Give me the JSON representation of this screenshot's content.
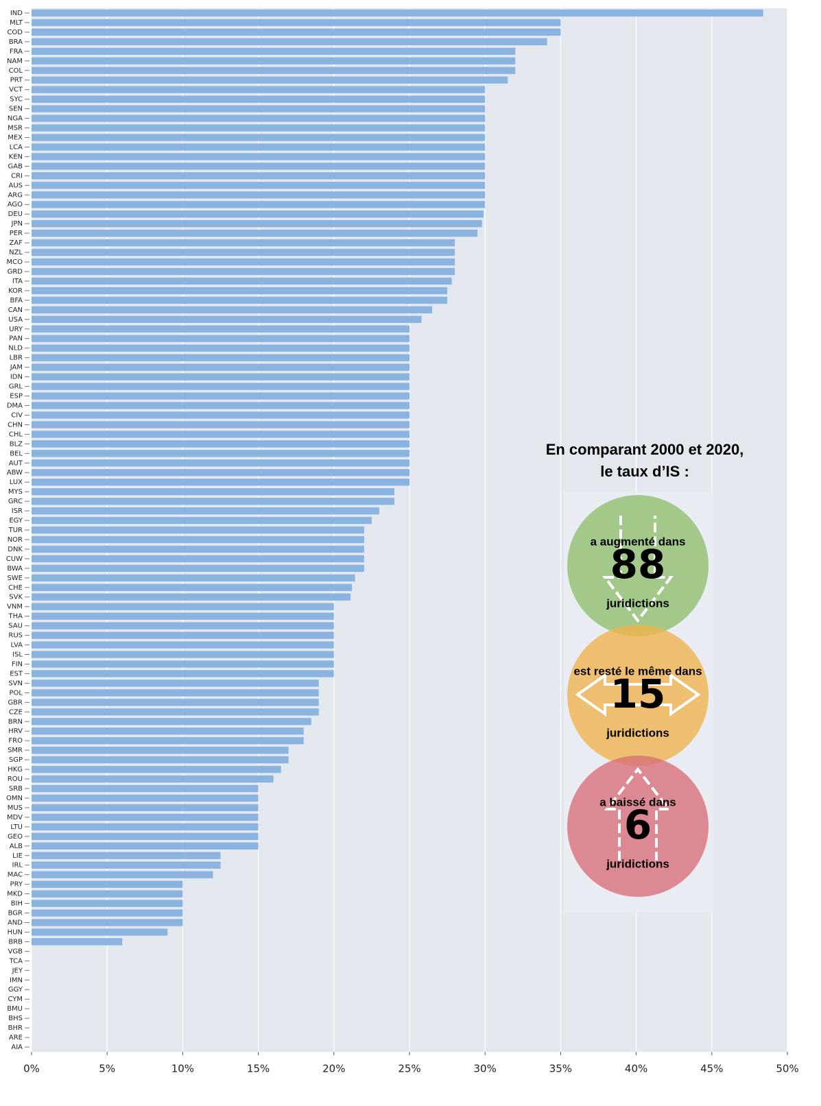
{
  "chart_data": {
    "type": "barh",
    "categories": [
      "IND",
      "MLT",
      "COD",
      "BRA",
      "FRA",
      "NAM",
      "COL",
      "PRT",
      "VCT",
      "SYC",
      "SEN",
      "NGA",
      "MSR",
      "MEX",
      "LCA",
      "KEN",
      "GAB",
      "CRI",
      "AUS",
      "ARG",
      "AGO",
      "DEU",
      "JPN",
      "PER",
      "ZAF",
      "NZL",
      "MCO",
      "GRD",
      "ITA",
      "KOR",
      "BFA",
      "CAN",
      "USA",
      "URY",
      "PAN",
      "NLD",
      "LBR",
      "JAM",
      "IDN",
      "GRL",
      "ESP",
      "DMA",
      "CIV",
      "CHN",
      "CHL",
      "BLZ",
      "BEL",
      "AUT",
      "ABW",
      "LUX",
      "MYS",
      "GRC",
      "ISR",
      "EGY",
      "TUR",
      "NOR",
      "DNK",
      "CUW",
      "BWA",
      "SWE",
      "CHE",
      "SVK",
      "VNM",
      "THA",
      "SAU",
      "RUS",
      "LVA",
      "ISL",
      "FIN",
      "EST",
      "SVN",
      "POL",
      "GBR",
      "CZE",
      "BRN",
      "HRV",
      "FRO",
      "SMR",
      "SGP",
      "HKG",
      "ROU",
      "SRB",
      "OMN",
      "MUS",
      "MDV",
      "LTU",
      "GEO",
      "ALB",
      "LIE",
      "IRL",
      "MAC",
      "PRY",
      "MKD",
      "BIH",
      "BGR",
      "AND",
      "HUN",
      "BRB",
      "VGB",
      "TCA",
      "JEY",
      "IMN",
      "GGY",
      "CYM",
      "BMU",
      "BHS",
      "BHR",
      "ARE",
      "AIA"
    ],
    "values": [
      48.4,
      35,
      35,
      34.1,
      32,
      32,
      32,
      31.5,
      30,
      30,
      30,
      30,
      30,
      30,
      30,
      30,
      30,
      30,
      30,
      30,
      30,
      29.9,
      29.8,
      29.5,
      28,
      28,
      28,
      28,
      27.8,
      27.5,
      27.5,
      26.5,
      25.8,
      25,
      25,
      25,
      25,
      25,
      25,
      25,
      25,
      25,
      25,
      25,
      25,
      25,
      25,
      25,
      25,
      25,
      24,
      24,
      23,
      22.5,
      22,
      22,
      22,
      22,
      22,
      21.4,
      21.2,
      21.1,
      20,
      20,
      20,
      20,
      20,
      20,
      20,
      20,
      19,
      19,
      19,
      19,
      18.5,
      18,
      18,
      17,
      17,
      16.5,
      16,
      15,
      15,
      15,
      15,
      15,
      15,
      15,
      12.5,
      12.5,
      12,
      10,
      10,
      10,
      10,
      10,
      9,
      6,
      0,
      0,
      0,
      0,
      0,
      0,
      0,
      0,
      0,
      0,
      0
    ],
    "color": "#8ab3df",
    "background": "#e2e8ee",
    "grid": true,
    "xlim": [
      0,
      50
    ],
    "xticks": [
      {
        "value": 0,
        "label": "0%"
      },
      {
        "value": 5,
        "label": "5%"
      },
      {
        "value": 10,
        "label": "10%"
      },
      {
        "value": 15,
        "label": "15%"
      },
      {
        "value": 20,
        "label": "20%"
      },
      {
        "value": 25,
        "label": "25%"
      },
      {
        "value": 30,
        "label": "30%"
      },
      {
        "value": 35,
        "label": "35%"
      },
      {
        "value": 40,
        "label": "40%"
      },
      {
        "value": 45,
        "label": "45%"
      },
      {
        "value": 50,
        "label": "50%"
      }
    ],
    "annotation": {
      "title": [
        "En comparant 2000 et 2020,",
        "le taux d’IS :"
      ],
      "items": [
        {
          "label": "a augmenté dans",
          "count": 88,
          "unit": "juridictions",
          "color": "#8fbf6c"
        },
        {
          "label": "est resté le même dans",
          "count": 15,
          "unit": "juridictions",
          "color": "#f1b24c"
        },
        {
          "label": "a baissé dans",
          "count": 6,
          "unit": "juridictions",
          "color": "#d86d79"
        }
      ]
    }
  }
}
